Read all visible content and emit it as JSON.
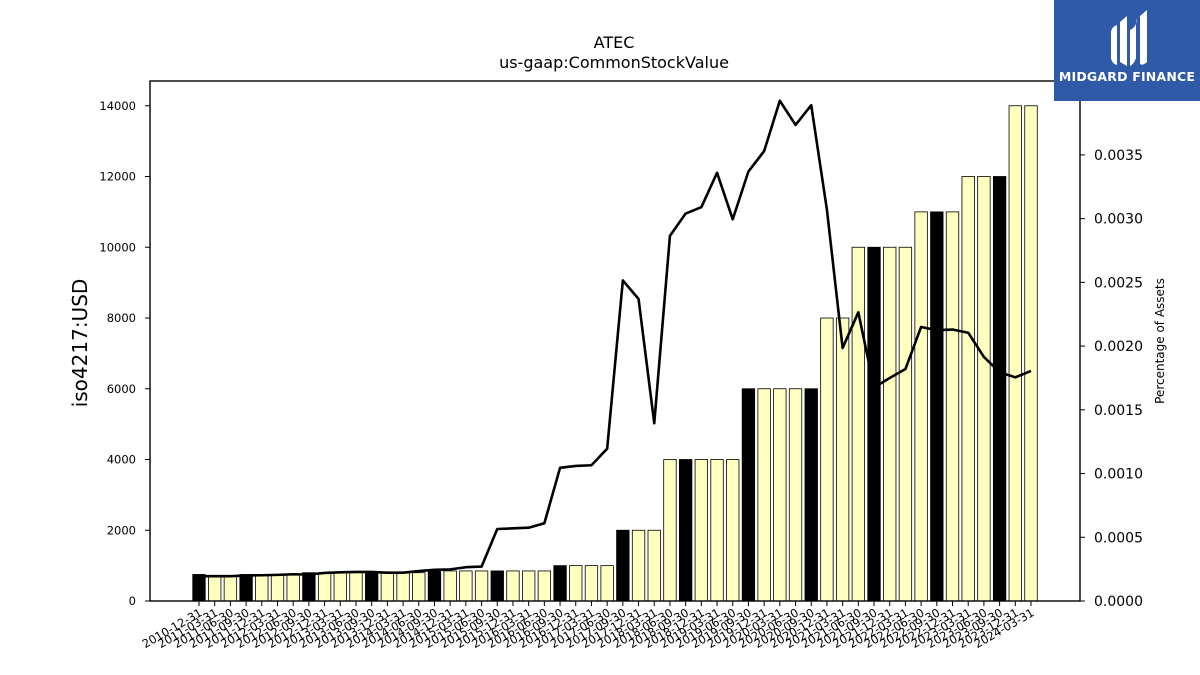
{
  "brand": {
    "name": "MIDGARD FINANCE",
    "logo_icon": "midgard-bars-icon",
    "bg_color": "#2e5aa8"
  },
  "chart_data": {
    "type": "bar",
    "title": "ATEC",
    "subtitle": "us-gaap:CommonStockValue",
    "ylabel": "iso4217:USD",
    "y2label": "Percentage of Assets",
    "ylim": [
      0,
      14700
    ],
    "y2lim": [
      0,
      0.00408
    ],
    "yticks": [
      "0",
      "2000",
      "4000",
      "6000",
      "8000",
      "10000",
      "12000",
      "14000"
    ],
    "y2ticks": [
      "0.0000",
      "0.0005",
      "0.0010",
      "0.0015",
      "0.0020",
      "0.0025",
      "0.0030",
      "0.0035"
    ],
    "grid": false,
    "colors": {
      "bar_highlight": "#000000",
      "bar_default": "#ffffc0",
      "bar_edge": "#000000",
      "line": "#000000"
    },
    "categories": [
      "2010-12-31",
      "2011-03-31",
      "2011-06-30",
      "2011-09-30",
      "2011-12-31",
      "2012-03-31",
      "2012-06-30",
      "2012-09-30",
      "2012-12-31",
      "2013-03-31",
      "2013-06-30",
      "2013-09-30",
      "2013-12-31",
      "2014-03-31",
      "2014-06-30",
      "2014-09-30",
      "2014-12-31",
      "2015-03-31",
      "2015-06-30",
      "2015-09-30",
      "2015-12-31",
      "2016-03-31",
      "2016-06-30",
      "2016-09-30",
      "2016-12-31",
      "2017-03-31",
      "2017-06-30",
      "2017-09-30",
      "2017-12-31",
      "2018-03-31",
      "2018-06-30",
      "2018-09-30",
      "2018-12-31",
      "2019-03-31",
      "2019-06-30",
      "2019-09-30",
      "2019-12-31",
      "2020-03-31",
      "2020-06-30",
      "2020-09-30",
      "2020-12-31",
      "2021-03-31",
      "2021-06-30",
      "2021-09-30",
      "2021-12-31",
      "2022-03-31",
      "2022-06-30",
      "2022-09-30",
      "2022-12-31",
      "2023-03-31",
      "2023-06-30",
      "2023-09-30",
      "2023-12-31",
      "2024-03-31"
    ],
    "highlight": [
      true,
      false,
      false,
      true,
      false,
      false,
      false,
      true,
      false,
      false,
      false,
      true,
      false,
      false,
      false,
      true,
      false,
      false,
      false,
      true,
      false,
      false,
      false,
      true,
      false,
      false,
      false,
      true,
      false,
      false,
      false,
      true,
      false,
      false,
      false,
      true,
      false,
      false,
      false,
      true,
      false,
      false,
      false,
      true,
      false,
      false,
      false,
      true,
      false,
      false,
      false,
      true,
      false,
      false
    ],
    "series": [
      {
        "name": "iso4217:USD",
        "type": "bar",
        "values": [
          750,
          700,
          700,
          750,
          750,
          750,
          750,
          800,
          800,
          800,
          800,
          800,
          800,
          800,
          800,
          850,
          850,
          850,
          850,
          850,
          850,
          850,
          850,
          1000,
          1000,
          1000,
          1000,
          2000,
          2000,
          2000,
          4000,
          4000,
          4000,
          4000,
          4000,
          6000,
          6000,
          6000,
          6000,
          6000,
          8000,
          8000,
          10000,
          10000,
          10000,
          10000,
          11000,
          11000,
          11000,
          12000,
          12000,
          12000,
          14000,
          14000
        ]
      },
      {
        "name": "Percentage of Assets",
        "type": "line",
        "values": [
          0.000195,
          0.000195,
          0.000195,
          0.0002,
          0.000202,
          0.000205,
          0.00021,
          0.000208,
          0.00022,
          0.000225,
          0.000228,
          0.000228,
          0.000222,
          0.000222,
          0.000235,
          0.000245,
          0.000248,
          0.000265,
          0.00027,
          0.000565,
          0.00057,
          0.000575,
          0.00061,
          0.001045,
          0.00106,
          0.001065,
          0.001195,
          0.002515,
          0.00237,
          0.001395,
          0.002865,
          0.00304,
          0.00309,
          0.00336,
          0.002995,
          0.00337,
          0.00353,
          0.003925,
          0.003735,
          0.00389,
          0.00307,
          0.001985,
          0.002265,
          0.001675,
          0.00175,
          0.00182,
          0.00215,
          0.002125,
          0.00213,
          0.002105,
          0.001915,
          0.001795,
          0.001755,
          0.001805
        ]
      }
    ]
  }
}
